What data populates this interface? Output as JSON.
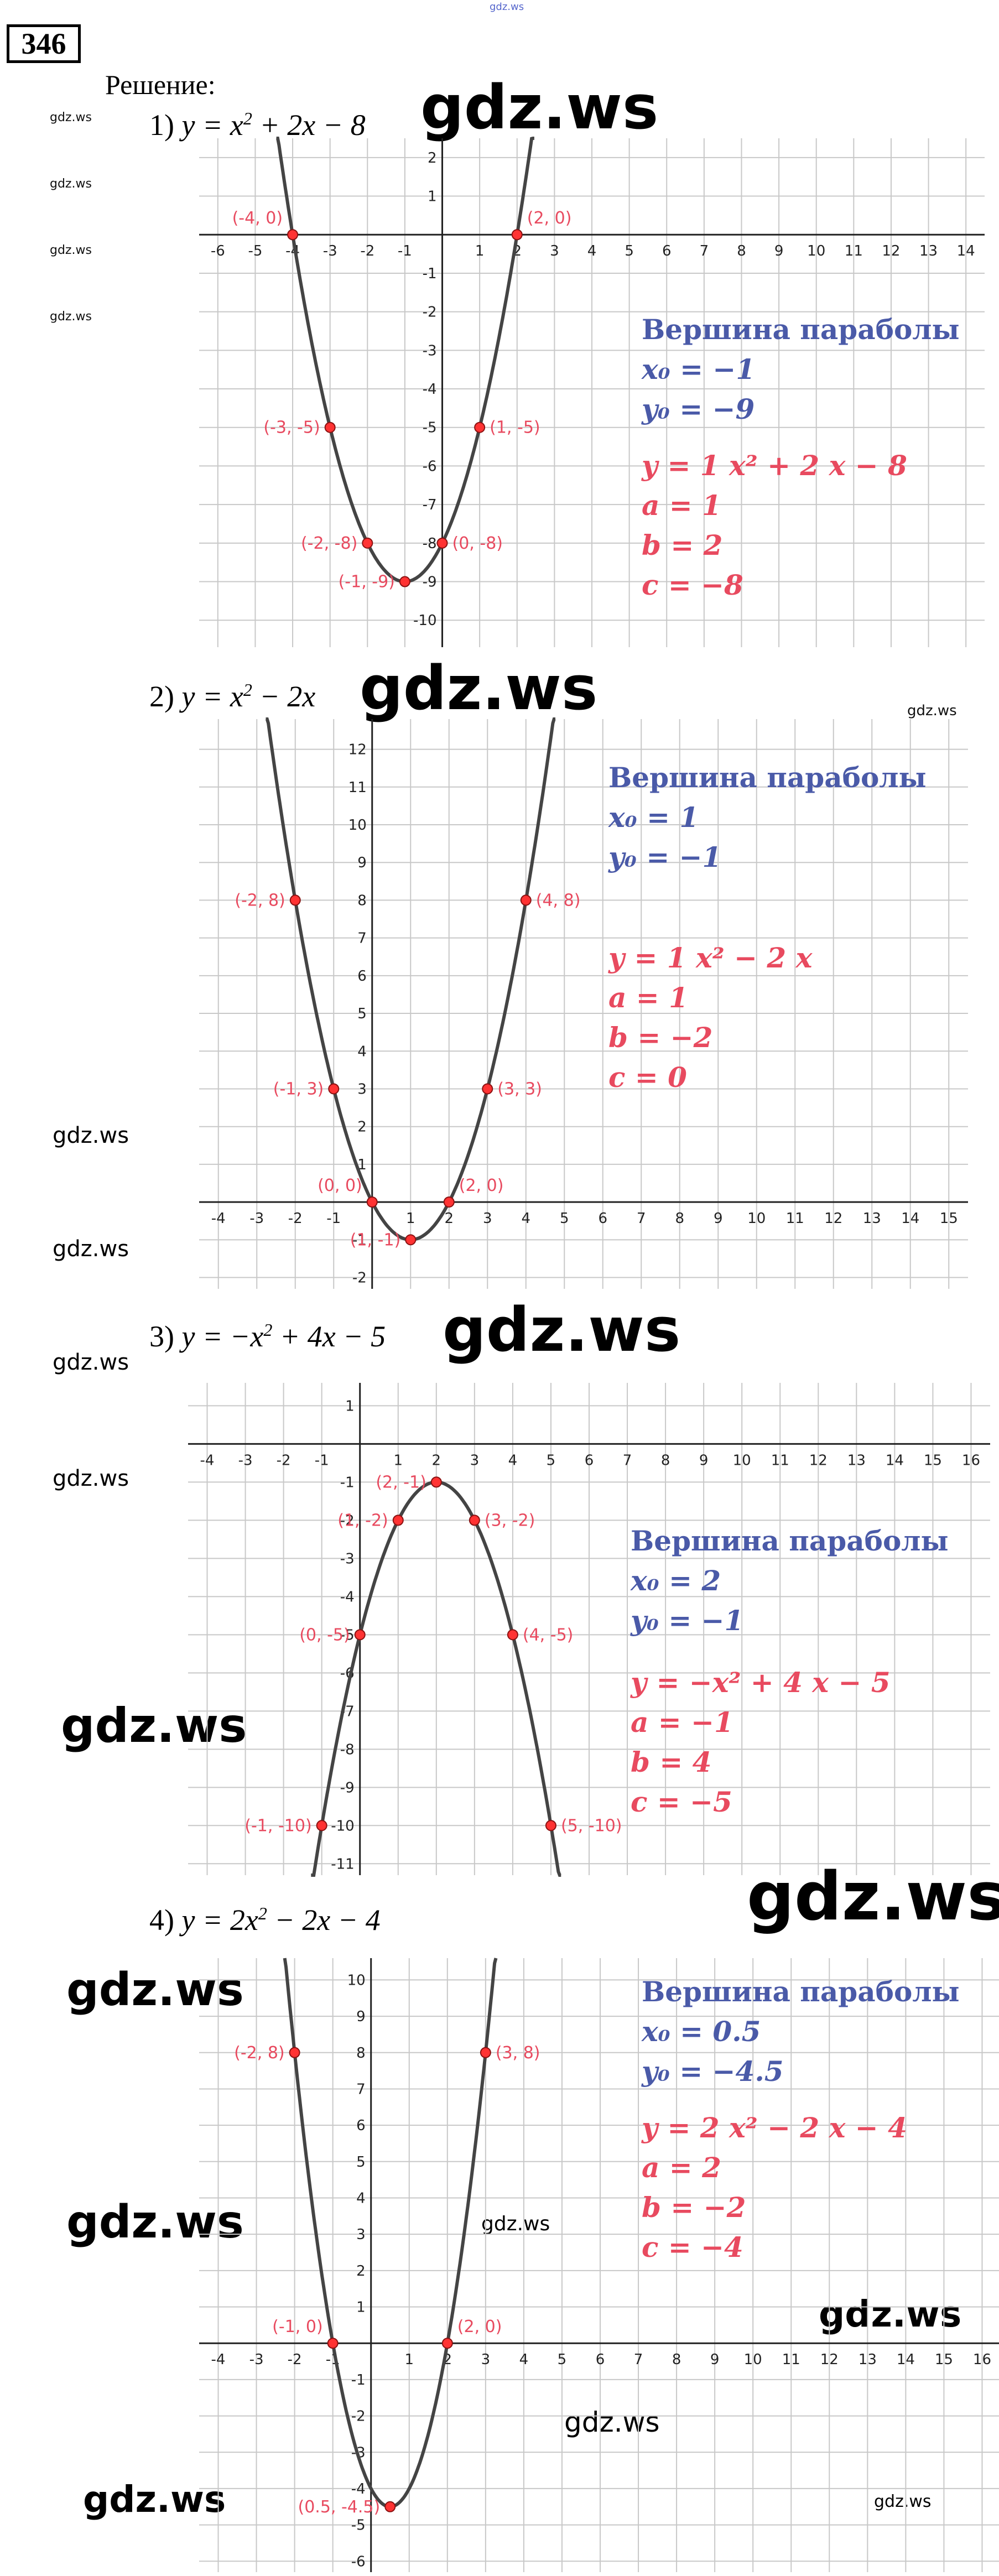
{
  "header": {
    "problem_number": "346",
    "solution_label": "Решение:",
    "top_watermark": "gdz.ws"
  },
  "watermark_text": "gdz.ws",
  "colors": {
    "grid": "#c8c8c8",
    "axis": "#222222",
    "curve": "#444444",
    "point_fill": "#ff3333",
    "label_red": "#e84a5f",
    "title_blue": "#4a5aa8"
  },
  "problems": [
    {
      "number_label": "1)",
      "equation": {
        "y": "y = x",
        "rest": " + 2x − 8",
        "exp": "2"
      },
      "vertex_title": "Вершина параболы",
      "x0_label": "x₀ = −1",
      "y0_label": "y₀ = −9",
      "formula": "y = 1 x² + 2 x − 8",
      "a_label": "a = 1",
      "b_label": "b = 2",
      "c_label": "c = −8",
      "chart_data": {
        "type": "line",
        "function": {
          "a": 1,
          "b": 2,
          "c": -8
        },
        "xlim": [
          -6.5,
          14.5
        ],
        "ylim": [
          -10.7,
          2.5
        ],
        "x_ticks": [
          -6,
          -5,
          -4,
          -3,
          -2,
          -1,
          1,
          2,
          3,
          4,
          5,
          6,
          7,
          8,
          9,
          10,
          11,
          12,
          13,
          14
        ],
        "y_ticks": [
          2,
          1,
          -1,
          -2,
          -3,
          -4,
          -5,
          -6,
          -7,
          -8,
          -9,
          -10
        ],
        "points": [
          {
            "x": -4,
            "y": 0,
            "label": "(-4, 0)"
          },
          {
            "x": 2,
            "y": 0,
            "label": "(2, 0)"
          },
          {
            "x": -3,
            "y": -5,
            "label": "(-3, -5)"
          },
          {
            "x": 1,
            "y": -5,
            "label": "(1, -5)"
          },
          {
            "x": -2,
            "y": -8,
            "label": "(-2, -8)"
          },
          {
            "x": 0,
            "y": -8,
            "label": "(0, -8)"
          },
          {
            "x": -1,
            "y": -9,
            "label": "(-1, -9)"
          }
        ],
        "grid": true
      }
    },
    {
      "number_label": "2)",
      "equation": {
        "y": "y = x",
        "rest": " − 2x",
        "exp": "2"
      },
      "vertex_title": "Вершина параболы",
      "x0_label": "x₀ = 1",
      "y0_label": "y₀ = −1",
      "formula": "y = 1 x² − 2 x",
      "a_label": "a = 1",
      "b_label": "b = −2",
      "c_label": "c = 0",
      "chart_data": {
        "type": "line",
        "function": {
          "a": 1,
          "b": -2,
          "c": 0
        },
        "xlim": [
          -4.5,
          15.5
        ],
        "ylim": [
          -2.3,
          12.8
        ],
        "x_ticks": [
          -4,
          -3,
          -2,
          -1,
          1,
          2,
          3,
          4,
          5,
          6,
          7,
          8,
          9,
          10,
          11,
          12,
          13,
          14,
          15
        ],
        "y_ticks": [
          12,
          11,
          10,
          9,
          8,
          7,
          6,
          5,
          4,
          3,
          2,
          1,
          -1,
          -2
        ],
        "points": [
          {
            "x": -2,
            "y": 8,
            "label": "(-2, 8)"
          },
          {
            "x": 4,
            "y": 8,
            "label": "(4, 8)"
          },
          {
            "x": -1,
            "y": 3,
            "label": "(-1, 3)"
          },
          {
            "x": 3,
            "y": 3,
            "label": "(3, 3)"
          },
          {
            "x": 0,
            "y": 0,
            "label": "(0, 0)"
          },
          {
            "x": 2,
            "y": 0,
            "label": "(2, 0)"
          },
          {
            "x": 1,
            "y": -1,
            "label": "(1, -1)"
          }
        ],
        "grid": true
      }
    },
    {
      "number_label": "3)",
      "equation": {
        "y": "y = −x",
        "rest": " + 4x − 5",
        "exp": "2"
      },
      "vertex_title": "Вершина параболы",
      "x0_label": "x₀ = 2",
      "y0_label": "y₀ = −1",
      "formula": "y = −x² + 4 x − 5",
      "a_label": "a = −1",
      "b_label": "b = 4",
      "c_label": "c = −5",
      "chart_data": {
        "type": "line",
        "function": {
          "a": -1,
          "b": 4,
          "c": -5
        },
        "xlim": [
          -4.5,
          16.5
        ],
        "ylim": [
          -11.3,
          1.6
        ],
        "x_ticks": [
          -4,
          -3,
          -2,
          -1,
          1,
          2,
          3,
          4,
          5,
          6,
          7,
          8,
          9,
          10,
          11,
          12,
          13,
          14,
          15,
          16
        ],
        "y_ticks": [
          1,
          -1,
          -2,
          -3,
          -4,
          -5,
          -6,
          -7,
          -8,
          -9,
          -10,
          -11
        ],
        "points": [
          {
            "x": 2,
            "y": -1,
            "label": "(2, -1)"
          },
          {
            "x": 1,
            "y": -2,
            "label": "(1, -2)"
          },
          {
            "x": 3,
            "y": -2,
            "label": "(3, -2)"
          },
          {
            "x": 0,
            "y": -5,
            "label": "(0, -5)"
          },
          {
            "x": 4,
            "y": -5,
            "label": "(4, -5)"
          },
          {
            "x": -1,
            "y": -10,
            "label": "(-1, -10)"
          },
          {
            "x": 5,
            "y": -10,
            "label": "(5, -10)"
          }
        ],
        "grid": true
      }
    },
    {
      "number_label": "4)",
      "equation": {
        "y": "y = 2x",
        "rest": " − 2x − 4",
        "exp": "2"
      },
      "vertex_title": "Вершина параболы",
      "x0_label": "x₀ = 0.5",
      "y0_label": "y₀ = −4.5",
      "formula": "y = 2 x² − 2 x − 4",
      "a_label": "a = 2",
      "b_label": "b = −2",
      "c_label": "c = −4",
      "chart_data": {
        "type": "line",
        "function": {
          "a": 2,
          "b": -2,
          "c": -4
        },
        "xlim": [
          -4.5,
          16.5
        ],
        "ylim": [
          -6.3,
          10.6
        ],
        "x_ticks": [
          -4,
          -3,
          -2,
          -1,
          1,
          2,
          3,
          4,
          5,
          6,
          7,
          8,
          9,
          10,
          11,
          12,
          13,
          14,
          15,
          16
        ],
        "y_ticks": [
          10,
          9,
          8,
          7,
          6,
          5,
          4,
          3,
          2,
          1,
          -1,
          -2,
          -3,
          -4,
          -5,
          -6
        ],
        "points": [
          {
            "x": -2,
            "y": 8,
            "label": "(-2, 8)"
          },
          {
            "x": 3,
            "y": 8,
            "label": "(3, 8)"
          },
          {
            "x": -1,
            "y": 0,
            "label": "(-1, 0)"
          },
          {
            "x": 2,
            "y": 0,
            "label": "(2, 0)"
          },
          {
            "x": 0.5,
            "y": -4.5,
            "label": "(0.5, -4.5)"
          }
        ],
        "grid": true
      }
    }
  ]
}
